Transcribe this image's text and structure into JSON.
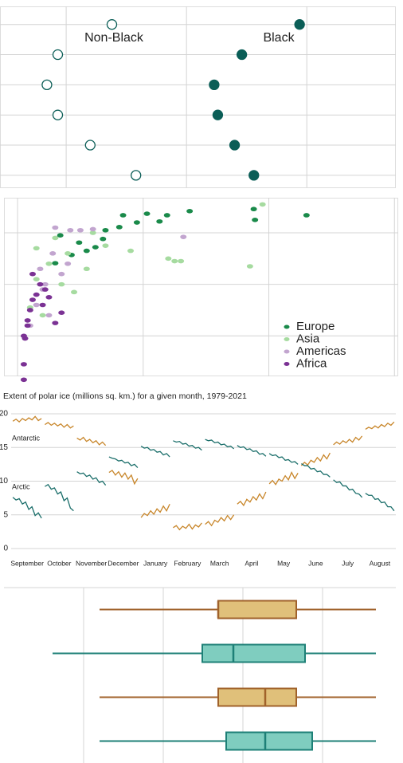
{
  "chart_data": [
    {
      "type": "dot",
      "categories": [
        null,
        null,
        null,
        null,
        null,
        null
      ],
      "xlim": [
        4.5,
        37.4
      ],
      "xticks": [
        10,
        20,
        30
      ],
      "grid": true,
      "series": [
        {
          "name": "Non-Black",
          "color": "#0b5e57",
          "hollow": true,
          "values": [
            13.8,
            9.3,
            8.4,
            9.3,
            12.0,
            15.8
          ]
        },
        {
          "name": "Black",
          "color": "#0b5e57",
          "hollow": false,
          "values": [
            29.4,
            24.6,
            22.3,
            22.6,
            24.0,
            25.6
          ]
        }
      ]
    },
    {
      "type": "scatter",
      "xlim": [
        -0.108,
        3.03
      ],
      "ylim": [
        0.216,
        3.68
      ],
      "xticks": [
        0,
        1,
        2,
        3
      ],
      "yticks": [
        1,
        2,
        3
      ],
      "grid": true,
      "legend": "bottom-right",
      "series": [
        {
          "name": "Europe",
          "color": "#1a8a4a",
          "x": [
            1.37,
            1.19,
            1.03,
            0.84,
            0.81,
            0.68,
            0.62,
            0.49,
            0.43,
            0.3,
            0.34,
            1.13,
            1.89,
            2.3,
            1.88,
            0.95,
            0.7,
            0.55
          ],
          "values": [
            3.42,
            3.34,
            3.37,
            3.34,
            3.11,
            2.88,
            2.72,
            2.81,
            2.57,
            2.41,
            2.95,
            3.22,
            3.25,
            3.34,
            3.46,
            3.2,
            3.05,
            2.65
          ]
        },
        {
          "name": "Asia",
          "color": "#a6dba0",
          "x": [
            0.1,
            0.15,
            0.25,
            0.35,
            0.45,
            0.55,
            0.7,
            0.9,
            1.2,
            1.95,
            1.85,
            1.25,
            1.3,
            0.6,
            0.3,
            0.2,
            0.4,
            0.15
          ],
          "values": [
            1.55,
            2.1,
            2.4,
            2.0,
            1.85,
            2.3,
            2.75,
            2.65,
            2.5,
            3.55,
            2.35,
            2.45,
            2.45,
            3.0,
            2.9,
            1.4,
            2.6,
            2.7
          ]
        },
        {
          "name": "Americas",
          "color": "#c2a5cf",
          "x": [
            0.15,
            0.22,
            0.3,
            0.28,
            0.42,
            0.5,
            0.6,
            0.35,
            0.2,
            0.25,
            1.32,
            0.1,
            0.4,
            0.18
          ],
          "values": [
            1.6,
            2.0,
            3.1,
            2.6,
            3.05,
            3.05,
            3.07,
            2.2,
            1.9,
            1.4,
            2.92,
            1.2,
            2.4,
            2.3
          ]
        },
        {
          "name": "Africa",
          "color": "#7b3294",
          "x": [
            0.05,
            0.06,
            0.08,
            0.1,
            0.12,
            0.15,
            0.18,
            0.2,
            0.25,
            0.35,
            0.08,
            0.05,
            0.12,
            0.22,
            0.05,
            0.3
          ],
          "values": [
            0.15,
            0.95,
            1.3,
            1.5,
            1.7,
            1.8,
            2.0,
            1.6,
            1.75,
            1.45,
            1.2,
            1.0,
            2.2,
            1.9,
            0.45,
            1.25
          ]
        }
      ]
    },
    {
      "type": "line",
      "title": "Extent of polar ice (millions sq. km.) for a given month, 1979-2021",
      "categories": [
        "September",
        "October",
        "November",
        "December",
        "January",
        "February",
        "March",
        "April",
        "May",
        "June",
        "July",
        "August"
      ],
      "ylim": [
        0,
        20
      ],
      "yticks": [
        0,
        5,
        10,
        15,
        20
      ],
      "grid": true,
      "series": [
        {
          "name": "Antarctic",
          "color": "#c8862a",
          "values": [
            [
              18.9,
              19.2,
              18.8,
              19.3,
              19.0,
              19.4,
              19.1,
              19.6,
              19.0,
              19.3
            ],
            [
              18.4,
              18.7,
              18.3,
              18.6,
              18.2,
              18.5,
              18.0,
              18.4,
              17.9,
              18.2
            ],
            [
              16.4,
              16.1,
              16.5,
              15.9,
              16.2,
              15.7,
              16.0,
              15.4,
              15.8,
              15.3
            ],
            [
              11.3,
              11.6,
              10.9,
              11.4,
              10.6,
              11.2,
              10.3,
              10.9,
              9.6,
              10.4
            ],
            [
              4.6,
              5.2,
              4.9,
              5.6,
              5.1,
              5.9,
              5.4,
              6.3,
              5.6,
              6.6
            ],
            [
              3.1,
              3.4,
              2.8,
              3.3,
              3.0,
              3.6,
              2.9,
              3.5,
              3.2,
              3.8
            ],
            [
              3.6,
              4.0,
              3.4,
              4.2,
              3.9,
              4.6,
              4.1,
              4.9,
              4.3,
              5.0
            ],
            [
              6.6,
              7.0,
              6.4,
              7.3,
              6.9,
              7.7,
              7.2,
              8.1,
              7.4,
              8.4
            ],
            [
              9.6,
              10.1,
              9.5,
              10.3,
              10.0,
              10.8,
              10.2,
              11.3,
              10.4,
              11.2
            ],
            [
              12.3,
              12.8,
              12.4,
              13.1,
              12.8,
              13.5,
              13.0,
              13.9,
              13.3,
              14.2
            ],
            [
              15.4,
              15.8,
              15.5,
              16.0,
              15.7,
              16.2,
              15.8,
              16.5,
              16.1,
              16.7
            ],
            [
              17.7,
              18.0,
              17.8,
              18.2,
              17.9,
              18.4,
              18.1,
              18.6,
              18.3,
              18.8
            ]
          ]
        },
        {
          "name": "Arctic",
          "color": "#1a6e6a",
          "values": [
            [
              7.6,
              7.2,
              7.4,
              6.6,
              6.9,
              5.8,
              6.2,
              4.9,
              5.3,
              4.5
            ],
            [
              9.2,
              9.5,
              8.8,
              9.0,
              8.1,
              8.4,
              7.1,
              7.5,
              6.0,
              5.6
            ],
            [
              11.4,
              11.1,
              11.2,
              10.7,
              10.9,
              10.3,
              10.5,
              9.8,
              10.0,
              9.4
            ],
            [
              13.6,
              13.4,
              13.3,
              13.0,
              13.1,
              12.7,
              12.8,
              12.3,
              12.5,
              12.0
            ],
            [
              15.2,
              14.9,
              15.0,
              14.6,
              14.7,
              14.3,
              14.4,
              13.9,
              14.1,
              13.6
            ],
            [
              16.0,
              15.8,
              15.9,
              15.5,
              15.6,
              15.2,
              15.3,
              14.9,
              15.0,
              14.6
            ],
            [
              16.2,
              16.0,
              16.1,
              15.7,
              15.8,
              15.4,
              15.5,
              15.1,
              15.2,
              14.8
            ],
            [
              15.3,
              15.0,
              15.1,
              14.7,
              14.8,
              14.4,
              14.5,
              14.0,
              14.1,
              13.7
            ],
            [
              14.1,
              13.8,
              13.9,
              13.5,
              13.6,
              13.1,
              13.2,
              12.8,
              12.9,
              12.5
            ],
            [
              12.6,
              12.3,
              12.3,
              11.8,
              11.9,
              11.4,
              11.5,
              11.0,
              11.0,
              10.6
            ],
            [
              10.2,
              9.8,
              9.9,
              9.3,
              9.3,
              8.7,
              8.8,
              8.2,
              8.1,
              7.6
            ],
            [
              8.2,
              7.9,
              7.9,
              7.3,
              7.4,
              6.8,
              6.9,
              6.2,
              6.2,
              5.6
            ]
          ]
        }
      ]
    },
    {
      "type": "box",
      "xlim": [
        0,
        4.92
      ],
      "xticks": [
        1,
        2,
        3,
        4
      ],
      "grid": true,
      "boxes": [
        {
          "min": 1.2,
          "q1": 2.69,
          "median": 2.69,
          "q3": 3.67,
          "max": 4.67,
          "color": "#a0622b",
          "fill": "#e0c07a"
        },
        {
          "min": 0.61,
          "q1": 2.49,
          "median": 2.88,
          "q3": 3.78,
          "max": 4.67,
          "color": "#1e8077",
          "fill": "#7fcdbf"
        },
        {
          "min": 1.2,
          "q1": 2.69,
          "median": 3.28,
          "q3": 3.67,
          "max": 4.67,
          "color": "#a0622b",
          "fill": "#e0c07a"
        },
        {
          "min": 1.2,
          "q1": 2.79,
          "median": 3.28,
          "q3": 3.87,
          "max": 4.67,
          "color": "#1e8077",
          "fill": "#7fcdbf"
        }
      ]
    }
  ]
}
